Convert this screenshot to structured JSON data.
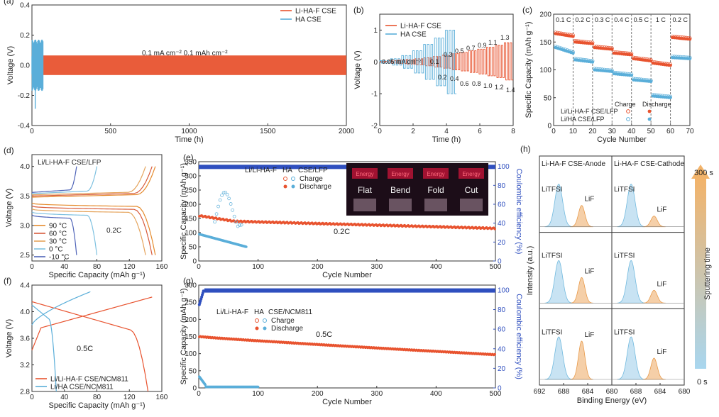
{
  "colors": {
    "lihaf": "#e8532f",
    "ha": "#5aaed9",
    "blue": "#2f4fbf",
    "grid": "#dddddd"
  },
  "chart_data": [
    {
      "id": "a",
      "type": "line",
      "panel_label": "(a)",
      "xlabel": "Time (h)",
      "ylabel": "Voltage (V)",
      "xlim": [
        0,
        2000
      ],
      "ylim": [
        -0.4,
        0.4
      ],
      "xticks": [
        0,
        500,
        1000,
        1500,
        2000
      ],
      "yticks": [
        -0.4,
        -0.2,
        0.0,
        0.2,
        0.4
      ],
      "annotation": "0.1 mA cm⁻² 0.1 mAh cm⁻²",
      "legend": [
        "Li-HA-F CSE",
        "HA CSE"
      ],
      "legend_position": "top-right",
      "series": [
        {
          "name": "Li-HA-F CSE",
          "type": "band",
          "x_start": 0,
          "x_end": 2000,
          "amplitude": 0.065
        },
        {
          "name": "HA CSE",
          "type": "band",
          "x_start": 0,
          "x_end": 70,
          "amplitude": 0.17
        }
      ]
    },
    {
      "id": "b",
      "type": "line",
      "panel_label": "(b)",
      "xlabel": "Time (h)",
      "ylabel": "Voltage (V)",
      "xlim": [
        0,
        8
      ],
      "ylim": [
        -2,
        1.5
      ],
      "xticks": [
        0,
        2,
        4,
        6,
        8
      ],
      "yticks": [
        -2,
        -1,
        0,
        1
      ],
      "legend": [
        "Li-HA-F CSE",
        "HA CSE"
      ],
      "legend_position": "top-left",
      "annotations": [
        "0.05 mA cm⁻²",
        "0.1",
        "0.2",
        "0.3",
        "0.4",
        "0.5",
        "0.6",
        "0.7",
        "0.8",
        "0.9",
        "1.0",
        "1.1",
        "1.2",
        "1.3",
        "1.4"
      ],
      "current_steps_mA_cm2": [
        0.05,
        0.1,
        0.2,
        0.3,
        0.4,
        0.5,
        0.6,
        0.7,
        0.8,
        0.9,
        1.0,
        1.1,
        1.2,
        1.3,
        1.4
      ],
      "series": [
        {
          "name": "Li-HA-F CSE",
          "type": "step_polarization",
          "peak_voltages": [
            0.02,
            0.04,
            0.06,
            0.08,
            0.1,
            0.13,
            0.17,
            0.21,
            0.26,
            0.3,
            0.35,
            0.4,
            0.46,
            0.52,
            0.6
          ]
        },
        {
          "name": "HA CSE",
          "type": "step_polarization",
          "x_end": 4.6,
          "peak_voltages": [
            0.04,
            0.1,
            0.2,
            0.35,
            0.55,
            0.75,
            1.0
          ]
        }
      ]
    },
    {
      "id": "c",
      "type": "scatter",
      "panel_label": "(c)",
      "xlabel": "Cycle Number",
      "ylabel": "Specific Capacity (mAh g⁻¹)",
      "xlim": [
        0,
        70
      ],
      "ylim": [
        0,
        200
      ],
      "xticks": [
        0,
        10,
        20,
        30,
        40,
        50,
        60,
        70
      ],
      "yticks": [
        0,
        50,
        100,
        150,
        200
      ],
      "rate_labels": [
        "0.1 C",
        "0.2 C",
        "0.3 C",
        "0.4 C",
        "0.5 C",
        "1 C",
        "0.2 C"
      ],
      "legend_header": [
        "Charge",
        "Discharge"
      ],
      "legend": [
        "Li/Li-HA-F CSE/LFP",
        "Li/HA CSE/LFP"
      ],
      "series": [
        {
          "name": "Li/Li-HA-F CSE/LFP",
          "plateaus": [
            [
              1,
              10,
              165,
              160
            ],
            [
              11,
              20,
              150,
              147
            ],
            [
              21,
              30,
              140,
              137
            ],
            [
              31,
              40,
              130,
              127
            ],
            [
              41,
              50,
              120,
              116
            ],
            [
              51,
              60,
              112,
              108
            ],
            [
              61,
              70,
              158,
              155
            ]
          ]
        },
        {
          "name": "Li/HA CSE/LFP",
          "plateaus": [
            [
              1,
              10,
              140,
              130
            ],
            [
              11,
              20,
              118,
              114
            ],
            [
              21,
              30,
              100,
              97
            ],
            [
              31,
              40,
              93,
              90
            ],
            [
              41,
              50,
              82,
              79
            ],
            [
              51,
              60,
              53,
              50
            ],
            [
              61,
              70,
              122,
              120
            ]
          ]
        }
      ]
    },
    {
      "id": "d",
      "type": "line",
      "panel_label": "(d)",
      "title": "Li/Li-HA-F CSE/LFP",
      "xlabel": "Specific Capacity (mAh g⁻¹)",
      "ylabel": "Voltage (V)",
      "xlim": [
        0,
        160
      ],
      "ylim": [
        2.4,
        4.2
      ],
      "xticks": [
        0,
        40,
        80,
        120,
        160
      ],
      "yticks": [
        2.5,
        3.0,
        3.5,
        4.0
      ],
      "annotation": "0.2C",
      "legend": [
        "90 °C",
        "60 °C",
        "30 °C",
        "0 °C",
        "-10 °C"
      ],
      "series": [
        {
          "name": "90 °C",
          "color": "#e58a2c",
          "capacity": 152
        },
        {
          "name": "60 °C",
          "color": "#d75b3c",
          "capacity": 148
        },
        {
          "name": "30 °C",
          "color": "#e5a45c",
          "capacity": 140
        },
        {
          "name": "0 °C",
          "color": "#7ec1e0",
          "capacity": 80
        },
        {
          "name": "-10 °C",
          "color": "#4f64b8",
          "capacity": 55
        }
      ]
    },
    {
      "id": "e",
      "type": "scatter",
      "panel_label": "(e)",
      "xlabel": "Cycle Number",
      "ylabel": "Specific Capacity (mAh g⁻¹)",
      "y2label": "Coulombic efficiency (%)",
      "xlim": [
        0,
        500
      ],
      "ylim": [
        0,
        350
      ],
      "y2lim": [
        0,
        105
      ],
      "xticks": [
        0,
        100,
        200,
        300,
        400,
        500
      ],
      "yticks": [
        0,
        50,
        100,
        150,
        200,
        250,
        300,
        350
      ],
      "y2ticks": [
        0,
        20,
        40,
        60,
        80,
        100
      ],
      "annotation": "0.2C",
      "legend": [
        "Li/Li-HA-F",
        "HA",
        "CSE/LFP",
        "Charge",
        "Discharge"
      ],
      "photo_labels": [
        "Flat",
        "Bend",
        "Fold",
        "Cut"
      ],
      "photo_caption": "Energy",
      "series": [
        {
          "name": "Li-HA-F",
          "start": 160,
          "end": 115,
          "cycles": 500
        },
        {
          "name": "HA",
          "start": 95,
          "end": 50,
          "cycles": 80
        },
        {
          "name": "CE",
          "value": 99.5
        }
      ]
    },
    {
      "id": "f",
      "type": "line",
      "panel_label": "(f)",
      "xlabel": "Specific Capacity (mAh g⁻¹)",
      "ylabel": "Voltage (V)",
      "xlim": [
        0,
        160
      ],
      "ylim": [
        2.8,
        4.4
      ],
      "xticks": [
        0,
        40,
        80,
        120,
        160
      ],
      "yticks": [
        2.8,
        3.2,
        3.6,
        4.0,
        4.4
      ],
      "annotation": "0.5C",
      "legend": [
        "Li/Li-HA-F CSE/NCM811",
        "Li/HA CSE/NCM811"
      ],
      "series": [
        {
          "name": "Li/Li-HA-F CSE/NCM811",
          "capacity": 143
        },
        {
          "name": "Li/HA CSE/NCM811",
          "capacity": 30
        }
      ]
    },
    {
      "id": "g",
      "type": "scatter",
      "panel_label": "(g)",
      "xlabel": "Cycle Number",
      "ylabel": "Specific Capacity (mAh g⁻¹)",
      "y2label": "Coulombic efficiency (%)",
      "xlim": [
        0,
        500
      ],
      "ylim": [
        0,
        300
      ],
      "y2lim": [
        0,
        105
      ],
      "xticks": [
        0,
        100,
        200,
        300,
        400,
        500
      ],
      "yticks": [
        0,
        50,
        100,
        150,
        200,
        250,
        300
      ],
      "y2ticks": [
        0,
        20,
        40,
        60,
        80,
        100
      ],
      "annotation": "0.5C",
      "legend": [
        "Li/Li-HA-F",
        "HA",
        "CSE/NCM811",
        "Charge",
        "Discharge"
      ],
      "series": [
        {
          "name": "Li-HA-F",
          "start": 150,
          "end": 97,
          "cycles": 500
        },
        {
          "name": "HA",
          "start": 35,
          "end": 3,
          "cycles": 100
        },
        {
          "name": "CE",
          "value": 99.5
        }
      ]
    },
    {
      "id": "h",
      "type": "area",
      "panel_label": "(h)",
      "xlabel": "Binding Energy (eV)",
      "ylabel": "Intensity (a.u.)",
      "columns": [
        "Li-HA-F CSE-Anode",
        "Li-HA-F CSE-Cathode"
      ],
      "xlim": [
        692,
        680
      ],
      "xticks": [
        692,
        688,
        684,
        680
      ],
      "peak_labels": [
        "LiTFSI",
        "LiF"
      ],
      "peaks_eV": {
        "LiTFSI": 688.8,
        "LiF": 685.0
      },
      "sputter_label": "Sputtering time",
      "sputter_top": "300 s",
      "sputter_bottom": "0 s",
      "rows": [
        {
          "anode": {
            "LiTFSI": 1.0,
            "LiF": 0.5
          },
          "cathode": {
            "LiTFSI": 1.0,
            "LiF": 0.25
          }
        },
        {
          "anode": {
            "LiTFSI": 1.0,
            "LiF": 0.6
          },
          "cathode": {
            "LiTFSI": 1.0,
            "LiF": 0.3
          }
        },
        {
          "anode": {
            "LiTFSI": 1.0,
            "LiF": 0.9
          },
          "cathode": {
            "LiTFSI": 1.0,
            "LiF": 0.5
          }
        }
      ]
    }
  ]
}
